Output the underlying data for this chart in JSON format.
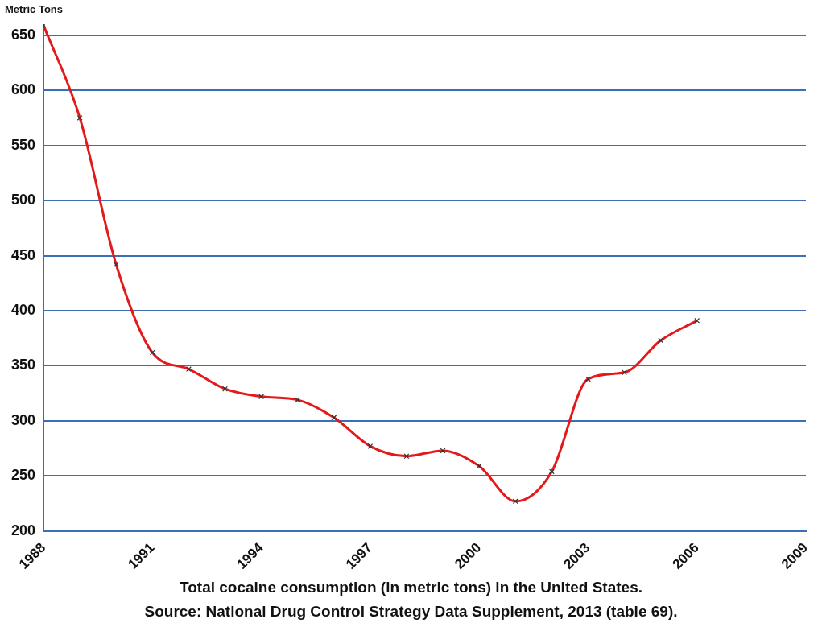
{
  "chart_data": {
    "type": "line",
    "ylabel": "Metric Tons",
    "annotations": [
      "Total cocaine consumption (in metric tons) in the United States.",
      "Source: National Drug Control Strategy Data Supplement, 2013 (table 69)."
    ],
    "x": [
      1988,
      1989,
      1990,
      1991,
      1992,
      1993,
      1994,
      1995,
      1996,
      1997,
      1998,
      1999,
      2000,
      2001,
      2002,
      2003,
      2004,
      2005,
      2006
    ],
    "series": [
      {
        "color": "#e31a1c",
        "values": [
          659,
          575,
          442,
          362,
          347,
          329,
          322,
          319,
          303,
          277,
          268,
          273,
          259,
          227,
          254,
          338,
          344,
          373,
          391
        ]
      }
    ],
    "xlim": [
      1988,
      2009
    ],
    "xticks": [
      1988,
      1991,
      1994,
      1997,
      2000,
      2003,
      2006,
      2009
    ],
    "ylim": [
      200,
      660
    ],
    "yticks": [
      200,
      250,
      300,
      350,
      400,
      450,
      500,
      550,
      600,
      650
    ],
    "grid": "y",
    "legend": false,
    "marker": "cross",
    "line_style": "solid"
  }
}
